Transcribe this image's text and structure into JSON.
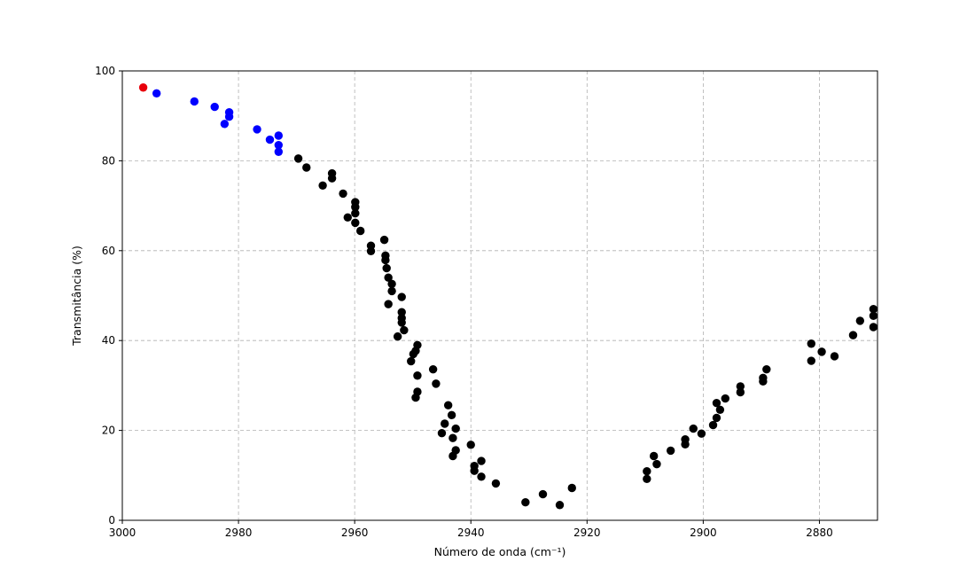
{
  "chart_data": {
    "type": "scatter",
    "xlabel": "Número de onda (cm⁻¹)",
    "ylabel": "Transmitância (%)",
    "xlim": [
      3000,
      2870
    ],
    "ylim": [
      0,
      100
    ],
    "x_ticks": [
      3000,
      2980,
      2960,
      2940,
      2920,
      2900,
      2880
    ],
    "y_ticks": [
      0,
      20,
      40,
      60,
      80,
      100
    ],
    "grid": true,
    "series": [
      {
        "color": "#000000",
        "points": [
          [
            2969.7,
            80.5
          ],
          [
            2968.3,
            78.5
          ],
          [
            2965.5,
            74.5
          ],
          [
            2963.9,
            77.2
          ],
          [
            2963.9,
            76.1
          ],
          [
            2962.0,
            72.7
          ],
          [
            2961.2,
            67.4
          ],
          [
            2959.9,
            70.8
          ],
          [
            2959.9,
            69.7
          ],
          [
            2959.9,
            68.3
          ],
          [
            2959.9,
            66.2
          ],
          [
            2959.0,
            64.4
          ],
          [
            2957.2,
            61.1
          ],
          [
            2957.2,
            59.9
          ],
          [
            2954.9,
            62.4
          ],
          [
            2954.7,
            58.9
          ],
          [
            2954.7,
            57.9
          ],
          [
            2954.5,
            56.1
          ],
          [
            2954.2,
            54.0
          ],
          [
            2953.6,
            52.6
          ],
          [
            2953.6,
            51.0
          ],
          [
            2954.2,
            48.1
          ],
          [
            2951.9,
            49.7
          ],
          [
            2951.9,
            46.3
          ],
          [
            2951.9,
            45.0
          ],
          [
            2951.9,
            44.0
          ],
          [
            2951.5,
            42.3
          ],
          [
            2952.6,
            40.9
          ],
          [
            2949.2,
            39.0
          ],
          [
            2949.5,
            37.7
          ],
          [
            2949.9,
            37.0
          ],
          [
            2950.3,
            35.4
          ],
          [
            2949.2,
            32.2
          ],
          [
            2949.2,
            28.6
          ],
          [
            2949.5,
            27.3
          ],
          [
            2946.5,
            33.6
          ],
          [
            2946.0,
            30.4
          ],
          [
            2943.9,
            25.6
          ],
          [
            2943.3,
            23.4
          ],
          [
            2944.5,
            21.5
          ],
          [
            2945.0,
            19.4
          ],
          [
            2942.6,
            20.4
          ],
          [
            2943.1,
            18.3
          ],
          [
            2942.6,
            15.6
          ],
          [
            2943.1,
            14.3
          ],
          [
            2940.0,
            16.8
          ],
          [
            2939.4,
            12.1
          ],
          [
            2939.4,
            11.0
          ],
          [
            2938.2,
            13.2
          ],
          [
            2938.2,
            9.7
          ],
          [
            2935.7,
            8.2
          ],
          [
            2930.6,
            4.0
          ],
          [
            2927.6,
            5.8
          ],
          [
            2924.7,
            3.4
          ],
          [
            2922.6,
            7.2
          ],
          [
            2909.7,
            10.9
          ],
          [
            2909.7,
            9.2
          ],
          [
            2908.5,
            14.3
          ],
          [
            2908.0,
            12.5
          ],
          [
            2905.6,
            15.5
          ],
          [
            2903.1,
            18.0
          ],
          [
            2903.1,
            16.9
          ],
          [
            2901.7,
            20.4
          ],
          [
            2900.3,
            19.3
          ],
          [
            2898.3,
            21.2
          ],
          [
            2897.7,
            26.1
          ],
          [
            2897.7,
            22.8
          ],
          [
            2897.1,
            24.6
          ],
          [
            2896.2,
            27.1
          ],
          [
            2893.6,
            29.8
          ],
          [
            2893.6,
            28.5
          ],
          [
            2889.7,
            31.7
          ],
          [
            2889.7,
            30.9
          ],
          [
            2889.1,
            33.6
          ],
          [
            2881.4,
            39.3
          ],
          [
            2881.4,
            35.5
          ],
          [
            2879.6,
            37.5
          ],
          [
            2877.4,
            36.5
          ],
          [
            2874.2,
            41.2
          ],
          [
            2873.0,
            44.4
          ],
          [
            2870.7,
            47.0
          ],
          [
            2870.7,
            45.5
          ],
          [
            2870.7,
            43.0
          ]
        ]
      },
      {
        "color": "#0000ff",
        "points": [
          [
            2994.1,
            95.0
          ],
          [
            2987.6,
            93.2
          ],
          [
            2984.1,
            92.0
          ],
          [
            2981.6,
            90.8
          ],
          [
            2981.6,
            89.8
          ],
          [
            2982.4,
            88.2
          ],
          [
            2976.8,
            87.0
          ],
          [
            2974.6,
            84.7
          ],
          [
            2973.1,
            85.6
          ],
          [
            2973.1,
            83.5
          ],
          [
            2973.1,
            82.0
          ]
        ]
      },
      {
        "color": "#e8000b",
        "points": [
          [
            2996.4,
            96.3
          ]
        ]
      }
    ]
  }
}
